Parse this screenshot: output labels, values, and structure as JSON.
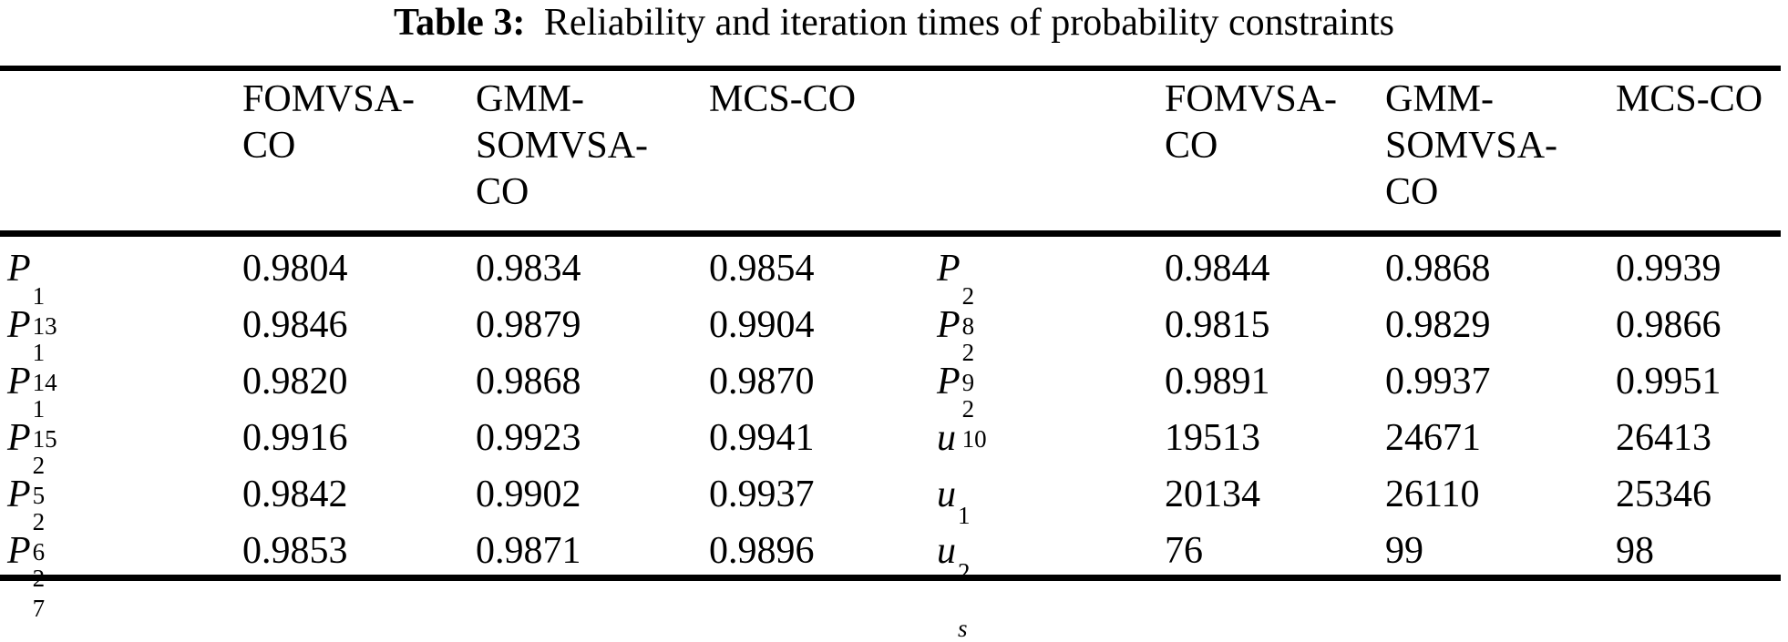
{
  "title": {
    "label": "Table 3:",
    "text": "Reliability and iteration times of probability constraints"
  },
  "header": {
    "columns": [
      "FOMVSA-CO",
      "GMM-SOMVSA-CO",
      "MCS-CO",
      "FOMVSA-CO",
      "GMM-SOMVSA-CO",
      "MCS-CO"
    ]
  },
  "rows": [
    {
      "left_label": {
        "base": "P",
        "sup": "1",
        "sub": "13"
      },
      "left_values": [
        "0.9804",
        "0.9834",
        "0.9854"
      ],
      "right_label": {
        "base": "P",
        "sup": "2",
        "sub": "8"
      },
      "right_values": [
        "0.9844",
        "0.9868",
        "0.9939"
      ]
    },
    {
      "left_label": {
        "base": "P",
        "sup": "1",
        "sub": "14"
      },
      "left_values": [
        "0.9846",
        "0.9879",
        "0.9904"
      ],
      "right_label": {
        "base": "P",
        "sup": "2",
        "sub": "9"
      },
      "right_values": [
        "0.9815",
        "0.9829",
        "0.9866"
      ]
    },
    {
      "left_label": {
        "base": "P",
        "sup": "1",
        "sub": "15"
      },
      "left_values": [
        "0.9820",
        "0.9868",
        "0.9870"
      ],
      "right_label": {
        "base": "P",
        "sup": "2",
        "sub": "10"
      },
      "right_values": [
        "0.9891",
        "0.9937",
        "0.9951"
      ]
    },
    {
      "left_label": {
        "base": "P",
        "sup": "2",
        "sub": "5"
      },
      "left_values": [
        "0.9916",
        "0.9923",
        "0.9941"
      ],
      "right_label": {
        "base": "u",
        "sup": "",
        "sub": "1"
      },
      "right_values": [
        "19513",
        "24671",
        "26413"
      ]
    },
    {
      "left_label": {
        "base": "P",
        "sup": "2",
        "sub": "6"
      },
      "left_values": [
        "0.9842",
        "0.9902",
        "0.9937"
      ],
      "right_label": {
        "base": "u",
        "sup": "",
        "sub": "2"
      },
      "right_values": [
        "20134",
        "26110",
        "25346"
      ]
    },
    {
      "left_label": {
        "base": "P",
        "sup": "2",
        "sub": "7"
      },
      "left_values": [
        "0.9853",
        "0.9871",
        "0.9896"
      ],
      "right_label": {
        "base": "u",
        "sup": "",
        "sub": "s"
      },
      "right_values": [
        "76",
        "99",
        "98"
      ]
    }
  ],
  "colors": {
    "text": "#000000",
    "rule": "#000000",
    "background": "#ffffff"
  }
}
